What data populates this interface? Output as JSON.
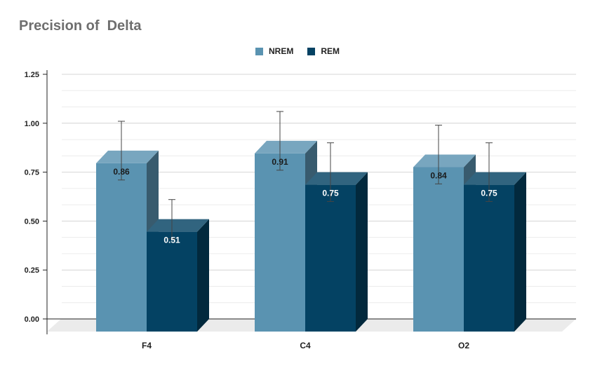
{
  "chart_data": {
    "type": "bar",
    "title": "Precision of  Delta",
    "categories": [
      "F4",
      "C4",
      "O2"
    ],
    "series": [
      {
        "name": "NREM",
        "values": [
          0.86,
          0.91,
          0.84
        ],
        "errors": [
          0.15,
          0.15,
          0.15
        ],
        "color": "#5a93b1"
      },
      {
        "name": "REM",
        "values": [
          0.51,
          0.75,
          0.75
        ],
        "errors": [
          0.1,
          0.15,
          0.15
        ],
        "color": "#044263"
      }
    ],
    "data_labels": [
      [
        "0.86",
        "0.91",
        "0.84"
      ],
      [
        "0.51",
        "0.75",
        "0.75"
      ]
    ],
    "ylim": [
      0,
      1.25
    ],
    "yticks": [
      "0.00",
      "0.25",
      "0.50",
      "0.75",
      "1.00",
      "1.25"
    ],
    "xlabel": "",
    "ylabel": "",
    "grid": true,
    "legend_position": "top-center"
  }
}
